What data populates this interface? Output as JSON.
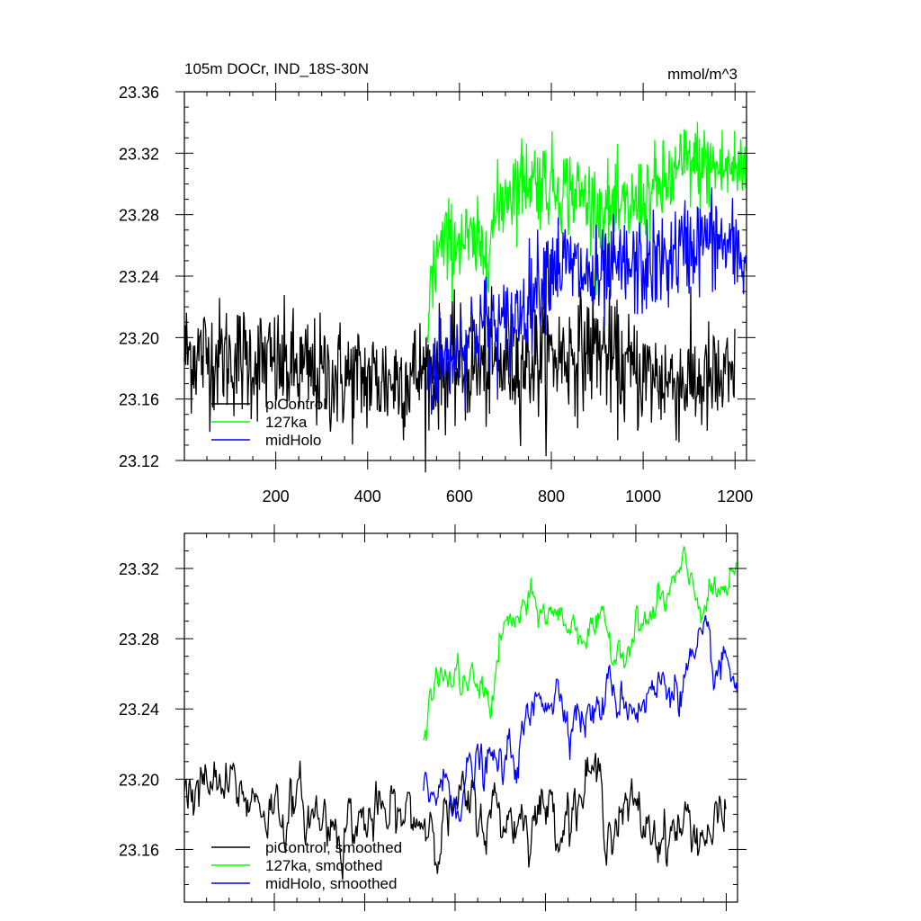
{
  "chart_data": [
    {
      "type": "line",
      "title": "105m DOCr, IND_18S-30N",
      "units": "mmol/m^3",
      "xlim": [
        1,
        1225
      ],
      "ylim": [
        23.12,
        23.36
      ],
      "x_ticks": [
        200,
        400,
        600,
        800,
        1000,
        1200
      ],
      "y_ticks": [
        "23.12",
        "23.16",
        "23.20",
        "23.24",
        "23.28",
        "23.32",
        "23.36"
      ],
      "legend_position": "bottom-left",
      "series": [
        {
          "name": "piControl",
          "color": "#000000",
          "x_range": [
            1,
            1200
          ],
          "mean": 23.185,
          "noise": 0.021,
          "anchors": [
            [
              1,
              23.19
            ],
            [
              150,
              23.185
            ],
            [
              300,
              23.175
            ],
            [
              450,
              23.172
            ],
            [
              550,
              23.18
            ],
            [
              650,
              23.18
            ],
            [
              750,
              23.185
            ],
            [
              850,
              23.19
            ],
            [
              900,
              23.195
            ],
            [
              950,
              23.18
            ],
            [
              1050,
              23.172
            ],
            [
              1200,
              23.17
            ]
          ]
        },
        {
          "name": "127ka",
          "color": "#00ff00",
          "x_range": [
            530,
            1225
          ],
          "noise": 0.016,
          "anchors": [
            [
              530,
              23.215
            ],
            [
              550,
              23.255
            ],
            [
              600,
              23.265
            ],
            [
              650,
              23.255
            ],
            [
              700,
              23.295
            ],
            [
              750,
              23.305
            ],
            [
              800,
              23.3
            ],
            [
              850,
              23.295
            ],
            [
              900,
              23.285
            ],
            [
              950,
              23.28
            ],
            [
              1000,
              23.29
            ],
            [
              1050,
              23.3
            ],
            [
              1100,
              23.315
            ],
            [
              1150,
              23.31
            ],
            [
              1225,
              23.31
            ]
          ]
        },
        {
          "name": "midHolo",
          "color": "#0000ff",
          "x_range": [
            530,
            1225
          ],
          "noise": 0.018,
          "anchors": [
            [
              530,
              23.175
            ],
            [
              600,
              23.195
            ],
            [
              650,
              23.21
            ],
            [
              700,
              23.205
            ],
            [
              750,
              23.225
            ],
            [
              800,
              23.25
            ],
            [
              850,
              23.245
            ],
            [
              900,
              23.235
            ],
            [
              950,
              23.245
            ],
            [
              1000,
              23.245
            ],
            [
              1050,
              23.25
            ],
            [
              1100,
              23.26
            ],
            [
              1150,
              23.265
            ],
            [
              1225,
              23.25
            ]
          ]
        }
      ]
    },
    {
      "type": "line",
      "xlim": [
        1,
        1225
      ],
      "ylim": [
        23.13,
        23.34
      ],
      "x_ticks": [
        200,
        400,
        600,
        800,
        1000,
        1200
      ],
      "y_ticks": [
        "23.16",
        "23.20",
        "23.24",
        "23.28",
        "23.32"
      ],
      "legend_position": "bottom-left",
      "series": [
        {
          "name": "piControl, smoothed",
          "color": "#000000",
          "x_range": [
            1,
            1200
          ],
          "noise": 0.011,
          "anchors": [
            [
              1,
              23.195
            ],
            [
              150,
              23.19
            ],
            [
              300,
              23.178
            ],
            [
              450,
              23.175
            ],
            [
              550,
              23.18
            ],
            [
              650,
              23.18
            ],
            [
              750,
              23.18
            ],
            [
              850,
              23.185
            ],
            [
              900,
              23.2
            ],
            [
              950,
              23.18
            ],
            [
              1050,
              23.172
            ],
            [
              1200,
              23.172
            ]
          ]
        },
        {
          "name": "127ka, smoothed",
          "color": "#00ff00",
          "x_range": [
            530,
            1225
          ],
          "noise": 0.007,
          "anchors": [
            [
              530,
              23.22
            ],
            [
              550,
              23.255
            ],
            [
              600,
              23.258
            ],
            [
              650,
              23.25
            ],
            [
              680,
              23.245
            ],
            [
              700,
              23.28
            ],
            [
              750,
              23.295
            ],
            [
              800,
              23.295
            ],
            [
              850,
              23.29
            ],
            [
              900,
              23.285
            ],
            [
              950,
              23.275
            ],
            [
              1000,
              23.285
            ],
            [
              1050,
              23.295
            ],
            [
              1100,
              23.315
            ],
            [
              1150,
              23.3
            ],
            [
              1225,
              23.31
            ]
          ]
        },
        {
          "name": "midHolo, smoothed",
          "color": "#0000ff",
          "x_range": [
            530,
            1225
          ],
          "noise": 0.009,
          "anchors": [
            [
              530,
              23.195
            ],
            [
              600,
              23.195
            ],
            [
              650,
              23.205
            ],
            [
              700,
              23.205
            ],
            [
              750,
              23.22
            ],
            [
              800,
              23.255
            ],
            [
              850,
              23.245
            ],
            [
              900,
              23.235
            ],
            [
              950,
              23.25
            ],
            [
              1000,
              23.245
            ],
            [
              1050,
              23.25
            ],
            [
              1100,
              23.26
            ],
            [
              1150,
              23.265
            ],
            [
              1225,
              23.255
            ]
          ]
        }
      ]
    }
  ]
}
